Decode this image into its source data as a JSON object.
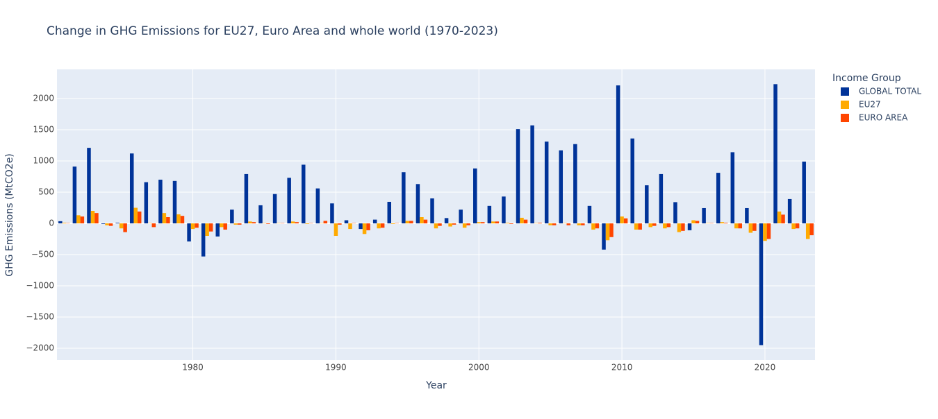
{
  "chart_data": {
    "type": "bar",
    "title": "Change in GHG Emissions for EU27, Euro Area and whole world (1970-2023)",
    "x_label": "Year",
    "y_label": "GHG Emissions (MtCO2e)",
    "legend_title": "Income Group",
    "x": [
      1971,
      1972,
      1973,
      1974,
      1975,
      1976,
      1977,
      1978,
      1979,
      1980,
      1981,
      1982,
      1983,
      1984,
      1985,
      1986,
      1987,
      1988,
      1989,
      1990,
      1991,
      1992,
      1993,
      1994,
      1995,
      1996,
      1997,
      1998,
      1999,
      2000,
      2001,
      2002,
      2003,
      2004,
      2005,
      2006,
      2007,
      2008,
      2009,
      2010,
      2011,
      2012,
      2013,
      2014,
      2015,
      2016,
      2017,
      2018,
      2019,
      2020,
      2021,
      2022,
      2023
    ],
    "series": [
      {
        "name": "GLOBAL TOTAL",
        "color": "#003399",
        "values": [
          35,
          910,
          1210,
          -10,
          10,
          1120,
          660,
          700,
          680,
          -290,
          -530,
          -210,
          220,
          790,
          290,
          470,
          730,
          940,
          560,
          320,
          50,
          -90,
          60,
          345,
          820,
          630,
          400,
          85,
          220,
          880,
          280,
          430,
          1510,
          1570,
          1310,
          1170,
          1270,
          280,
          -420,
          2210,
          1360,
          610,
          790,
          340,
          -110,
          245,
          810,
          1140,
          245,
          -1950,
          2230,
          390,
          990
        ]
      },
      {
        "name": "EU27",
        "color": "#ffaa00",
        "values": [
          10,
          130,
          200,
          -30,
          -80,
          250,
          5,
          165,
          145,
          -90,
          -200,
          -60,
          -20,
          30,
          5,
          5,
          30,
          -10,
          5,
          -200,
          -90,
          -170,
          -80,
          -10,
          40,
          100,
          -80,
          -50,
          -70,
          20,
          30,
          10,
          90,
          5,
          -30,
          5,
          -30,
          -100,
          -270,
          110,
          -100,
          -60,
          -80,
          -140,
          50,
          5,
          20,
          -80,
          -150,
          -280,
          190,
          -90,
          -250
        ]
      },
      {
        "name": "EURO AREA",
        "color": "#ff4500",
        "values": [
          5,
          110,
          165,
          -40,
          -140,
          190,
          -60,
          100,
          120,
          -70,
          -130,
          -100,
          -20,
          20,
          -10,
          5,
          20,
          5,
          40,
          -20,
          5,
          -110,
          -70,
          5,
          40,
          60,
          -40,
          -20,
          -30,
          20,
          30,
          -10,
          60,
          10,
          -30,
          -30,
          -30,
          -80,
          -220,
          80,
          -100,
          -40,
          -60,
          -120,
          40,
          5,
          10,
          -80,
          -120,
          -250,
          140,
          -80,
          -190
        ]
      }
    ],
    "xlim": [
      1970.5,
      2023.5
    ],
    "xticks": [
      1980,
      1990,
      2000,
      2010,
      2020
    ],
    "ylim": [
      -2189,
      2467
    ],
    "yticks": [
      {
        "value": -2000,
        "label": "−2000"
      },
      {
        "value": -1500,
        "label": "−1500"
      },
      {
        "value": -1000,
        "label": "−1000"
      },
      {
        "value": -500,
        "label": "−500"
      },
      0,
      500,
      1000,
      1500,
      2000
    ],
    "grid": true
  }
}
